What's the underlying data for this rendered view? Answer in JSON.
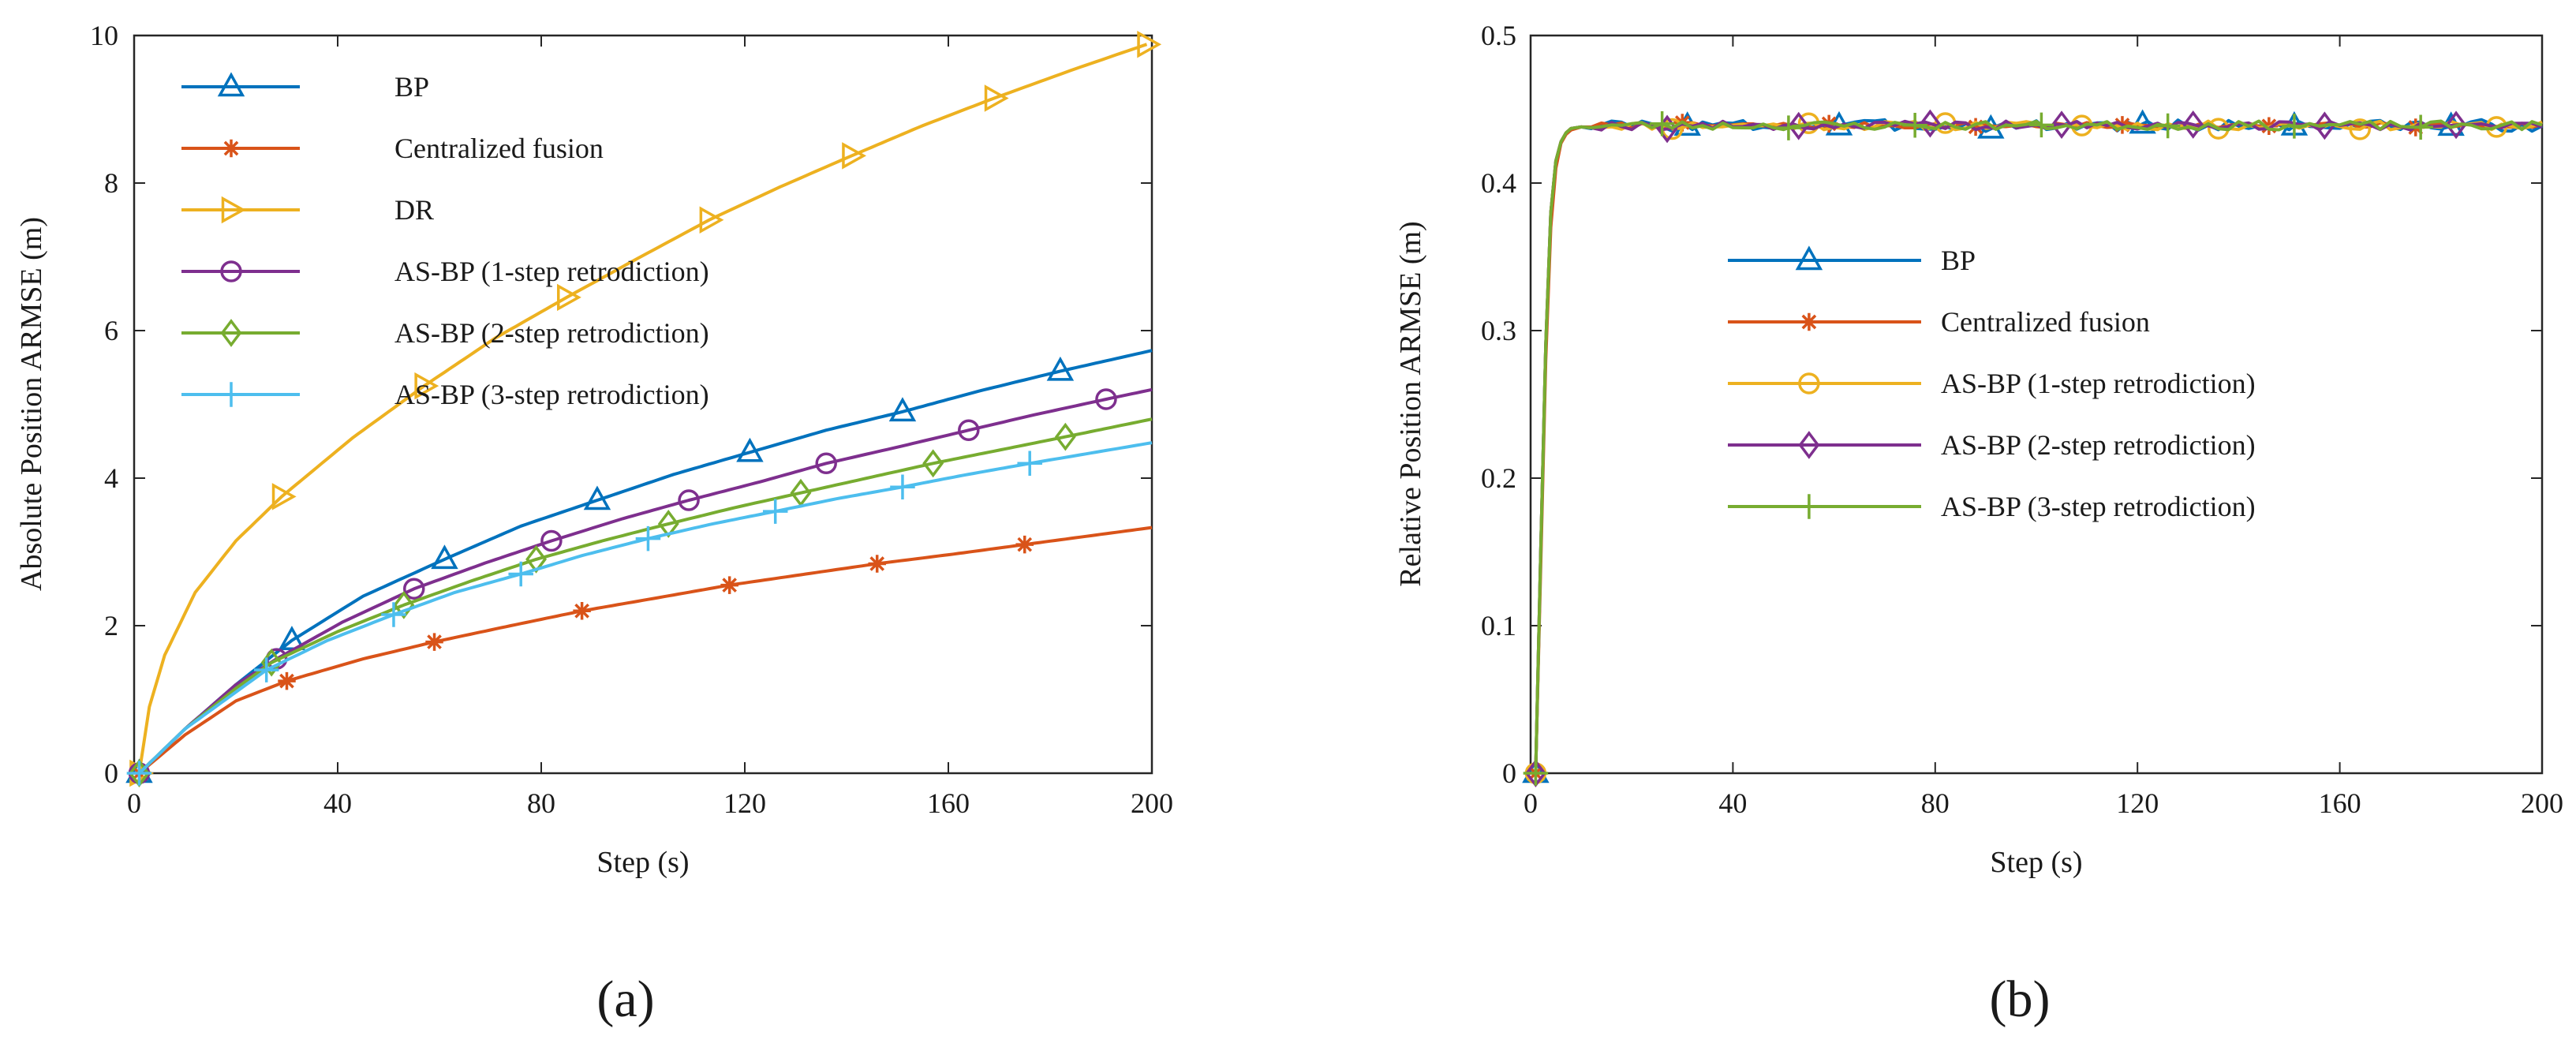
{
  "chart_data": [
    {
      "type": "line",
      "panel_label": "(a)",
      "xlabel": "Step (s)",
      "ylabel": "Absolute Position ARMSE (m)",
      "xlim": [
        0,
        200
      ],
      "ylim": [
        0,
        10
      ],
      "xticks": [
        "0",
        "40",
        "80",
        "120",
        "160",
        "200"
      ],
      "yticks": [
        "0",
        "2",
        "4",
        "6",
        "8",
        "10"
      ],
      "legend_position": "top-left",
      "series": [
        {
          "name": "BP",
          "color": "#0072BD",
          "marker": "triangle",
          "x": [
            1,
            10,
            20,
            31,
            45,
            61,
            76,
            91,
            106,
            121,
            136,
            151,
            166,
            182,
            200
          ],
          "y": [
            0,
            0.6,
            1.2,
            1.8,
            2.4,
            2.9,
            3.35,
            3.7,
            4.05,
            4.35,
            4.65,
            4.9,
            5.18,
            5.45,
            5.73
          ],
          "marker_x": [
            1,
            31,
            61,
            91,
            121,
            151,
            182
          ]
        },
        {
          "name": "Centralized fusion",
          "color": "#D95319",
          "marker": "asterisk",
          "x": [
            1,
            10,
            20,
            30,
            45,
            59,
            74,
            88,
            103,
            117,
            132,
            146,
            161,
            175,
            200
          ],
          "y": [
            0,
            0.52,
            0.98,
            1.25,
            1.55,
            1.78,
            2.0,
            2.2,
            2.38,
            2.55,
            2.7,
            2.84,
            2.97,
            3.1,
            3.33
          ],
          "marker_x": [
            1,
            30,
            59,
            88,
            117,
            146,
            175
          ]
        },
        {
          "name": "DR",
          "color": "#EDB120",
          "marker": "triangle-right",
          "x": [
            1,
            3,
            6,
            12,
            20,
            29,
            43,
            57,
            71,
            85,
            99,
            113,
            127,
            141,
            155,
            169,
            185,
            199
          ],
          "y": [
            0,
            0.9,
            1.6,
            2.45,
            3.15,
            3.75,
            4.55,
            5.25,
            5.9,
            6.45,
            6.98,
            7.5,
            7.95,
            8.37,
            8.78,
            9.15,
            9.55,
            9.88
          ],
          "marker_x": [
            1,
            29,
            57,
            85,
            113,
            141,
            169,
            199
          ]
        },
        {
          "name": "AS-BP (1-step retrodiction)",
          "color": "#7E2F8E",
          "marker": "circle",
          "x": [
            1,
            10,
            20,
            28,
            41,
            55,
            69,
            82,
            96,
            109,
            123,
            136,
            150,
            164,
            177,
            191,
            200
          ],
          "y": [
            0,
            0.6,
            1.2,
            1.55,
            2.05,
            2.5,
            2.85,
            3.15,
            3.45,
            3.7,
            3.95,
            4.2,
            4.42,
            4.65,
            4.86,
            5.07,
            5.2
          ],
          "marker_x": [
            1,
            28,
            55,
            82,
            109,
            136,
            164,
            191
          ]
        },
        {
          "name": "AS-BP (2-step retrodiction)",
          "color": "#77AC30",
          "marker": "diamond",
          "x": [
            1,
            10,
            20,
            27,
            40,
            53,
            66,
            79,
            92,
            105,
            118,
            131,
            144,
            157,
            170,
            183,
            200
          ],
          "y": [
            0,
            0.6,
            1.15,
            1.5,
            1.92,
            2.28,
            2.6,
            2.9,
            3.15,
            3.38,
            3.6,
            3.8,
            4.0,
            4.2,
            4.38,
            4.56,
            4.8
          ],
          "marker_x": [
            1,
            27,
            53,
            79,
            105,
            131,
            157,
            183
          ]
        },
        {
          "name": "AS-BP (3-step retrodiction)",
          "color": "#4DBEEE",
          "marker": "plus",
          "x": [
            1,
            10,
            20,
            26,
            38,
            51,
            63,
            76,
            88,
            101,
            113,
            126,
            138,
            151,
            163,
            176,
            200
          ],
          "y": [
            0,
            0.6,
            1.1,
            1.4,
            1.8,
            2.15,
            2.45,
            2.7,
            2.95,
            3.18,
            3.37,
            3.55,
            3.72,
            3.88,
            4.04,
            4.2,
            4.48
          ],
          "marker_x": [
            1,
            26,
            51,
            76,
            101,
            126,
            151,
            176
          ]
        }
      ]
    },
    {
      "type": "line",
      "panel_label": "(b)",
      "xlabel": "Step (s)",
      "ylabel": "Relative Position ARMSE (m)",
      "xlim": [
        0,
        200
      ],
      "ylim": [
        0,
        0.5
      ],
      "xticks": [
        "0",
        "40",
        "80",
        "120",
        "160",
        "200"
      ],
      "yticks": [
        "0",
        "0.1",
        "0.2",
        "0.3",
        "0.4",
        "0.5"
      ],
      "legend_position": "center-left",
      "series": [
        {
          "name": "BP",
          "color": "#0072BD",
          "marker": "triangle",
          "seed": 3,
          "x": [
            1,
            2,
            3,
            4,
            5,
            6,
            7,
            8,
            10
          ],
          "y": [
            0,
            0.15,
            0.29,
            0.38,
            0.415,
            0.428,
            0.434,
            0.437,
            0.438
          ],
          "steady": 0.439,
          "noise": 0.004,
          "marker_x": [
            1,
            31,
            61,
            91,
            121,
            151,
            182
          ]
        },
        {
          "name": "Centralized fusion",
          "color": "#D95319",
          "marker": "asterisk",
          "seed": 7,
          "x": [
            1,
            2,
            3,
            4,
            5,
            6,
            7,
            8,
            10
          ],
          "y": [
            0,
            0.14,
            0.28,
            0.37,
            0.41,
            0.427,
            0.433,
            0.436,
            0.438
          ],
          "steady": 0.439,
          "noise": 0.002,
          "marker_x": [
            1,
            30,
            59,
            88,
            117,
            146,
            175
          ]
        },
        {
          "name": "AS-BP (1-step retrodiction)",
          "color": "#EDB120",
          "marker": "circle",
          "seed": 11,
          "x": [
            1,
            2,
            3,
            4,
            5,
            6,
            7,
            8,
            10
          ],
          "y": [
            0,
            0.15,
            0.29,
            0.38,
            0.415,
            0.428,
            0.434,
            0.437,
            0.438
          ],
          "steady": 0.439,
          "noise": 0.003,
          "marker_x": [
            1,
            28,
            55,
            82,
            109,
            136,
            164,
            191
          ]
        },
        {
          "name": "AS-BP (2-step retrodiction)",
          "color": "#7E2F8E",
          "marker": "diamond",
          "seed": 19,
          "x": [
            1,
            2,
            3,
            4,
            5,
            6,
            7,
            8,
            10
          ],
          "y": [
            0,
            0.15,
            0.29,
            0.38,
            0.415,
            0.428,
            0.434,
            0.437,
            0.438
          ],
          "steady": 0.439,
          "noise": 0.003,
          "marker_x": [
            1,
            27,
            53,
            79,
            105,
            131,
            157,
            183
          ]
        },
        {
          "name": "AS-BP (3-step retrodiction)",
          "color": "#77AC30",
          "marker": "plus",
          "seed": 23,
          "x": [
            1,
            2,
            3,
            4,
            5,
            6,
            7,
            8,
            10
          ],
          "y": [
            0,
            0.15,
            0.29,
            0.38,
            0.415,
            0.428,
            0.434,
            0.437,
            0.438
          ],
          "steady": 0.439,
          "noise": 0.003,
          "marker_x": [
            1,
            26,
            51,
            76,
            101,
            126,
            151,
            176
          ]
        }
      ]
    }
  ]
}
